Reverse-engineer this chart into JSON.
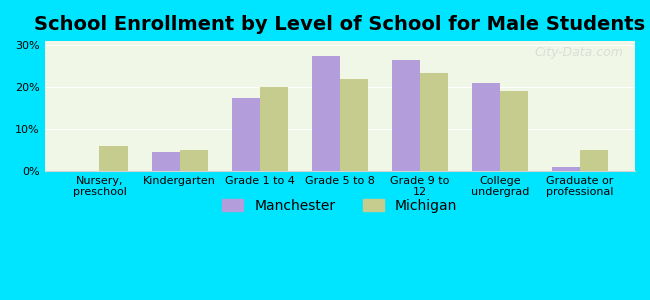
{
  "title": "School Enrollment by Level of School for Male Students",
  "categories": [
    "Nursery,\npreschool",
    "Kindergarten",
    "Grade 1 to 4",
    "Grade 5 to 8",
    "Grade 9 to\n12",
    "College\nundergrad",
    "Graduate or\nprofessional"
  ],
  "manchester": [
    0.0,
    4.5,
    17.5,
    27.5,
    26.5,
    21.0,
    1.0
  ],
  "michigan": [
    6.0,
    5.0,
    20.0,
    22.0,
    23.5,
    19.0,
    5.0
  ],
  "manchester_color": "#b39ddb",
  "michigan_color": "#c5cc8e",
  "background_color": "#00e5ff",
  "plot_bg_start": "#f0f7e6",
  "plot_bg_end": "#ffffff",
  "title_fontsize": 14,
  "tick_fontsize": 8,
  "legend_fontsize": 10,
  "ylim": [
    0,
    31
  ],
  "yticks": [
    0,
    10,
    20,
    30
  ],
  "ytick_labels": [
    "0%",
    "10%",
    "20%",
    "30%"
  ],
  "bar_width": 0.35,
  "watermark": "City-Data.com"
}
